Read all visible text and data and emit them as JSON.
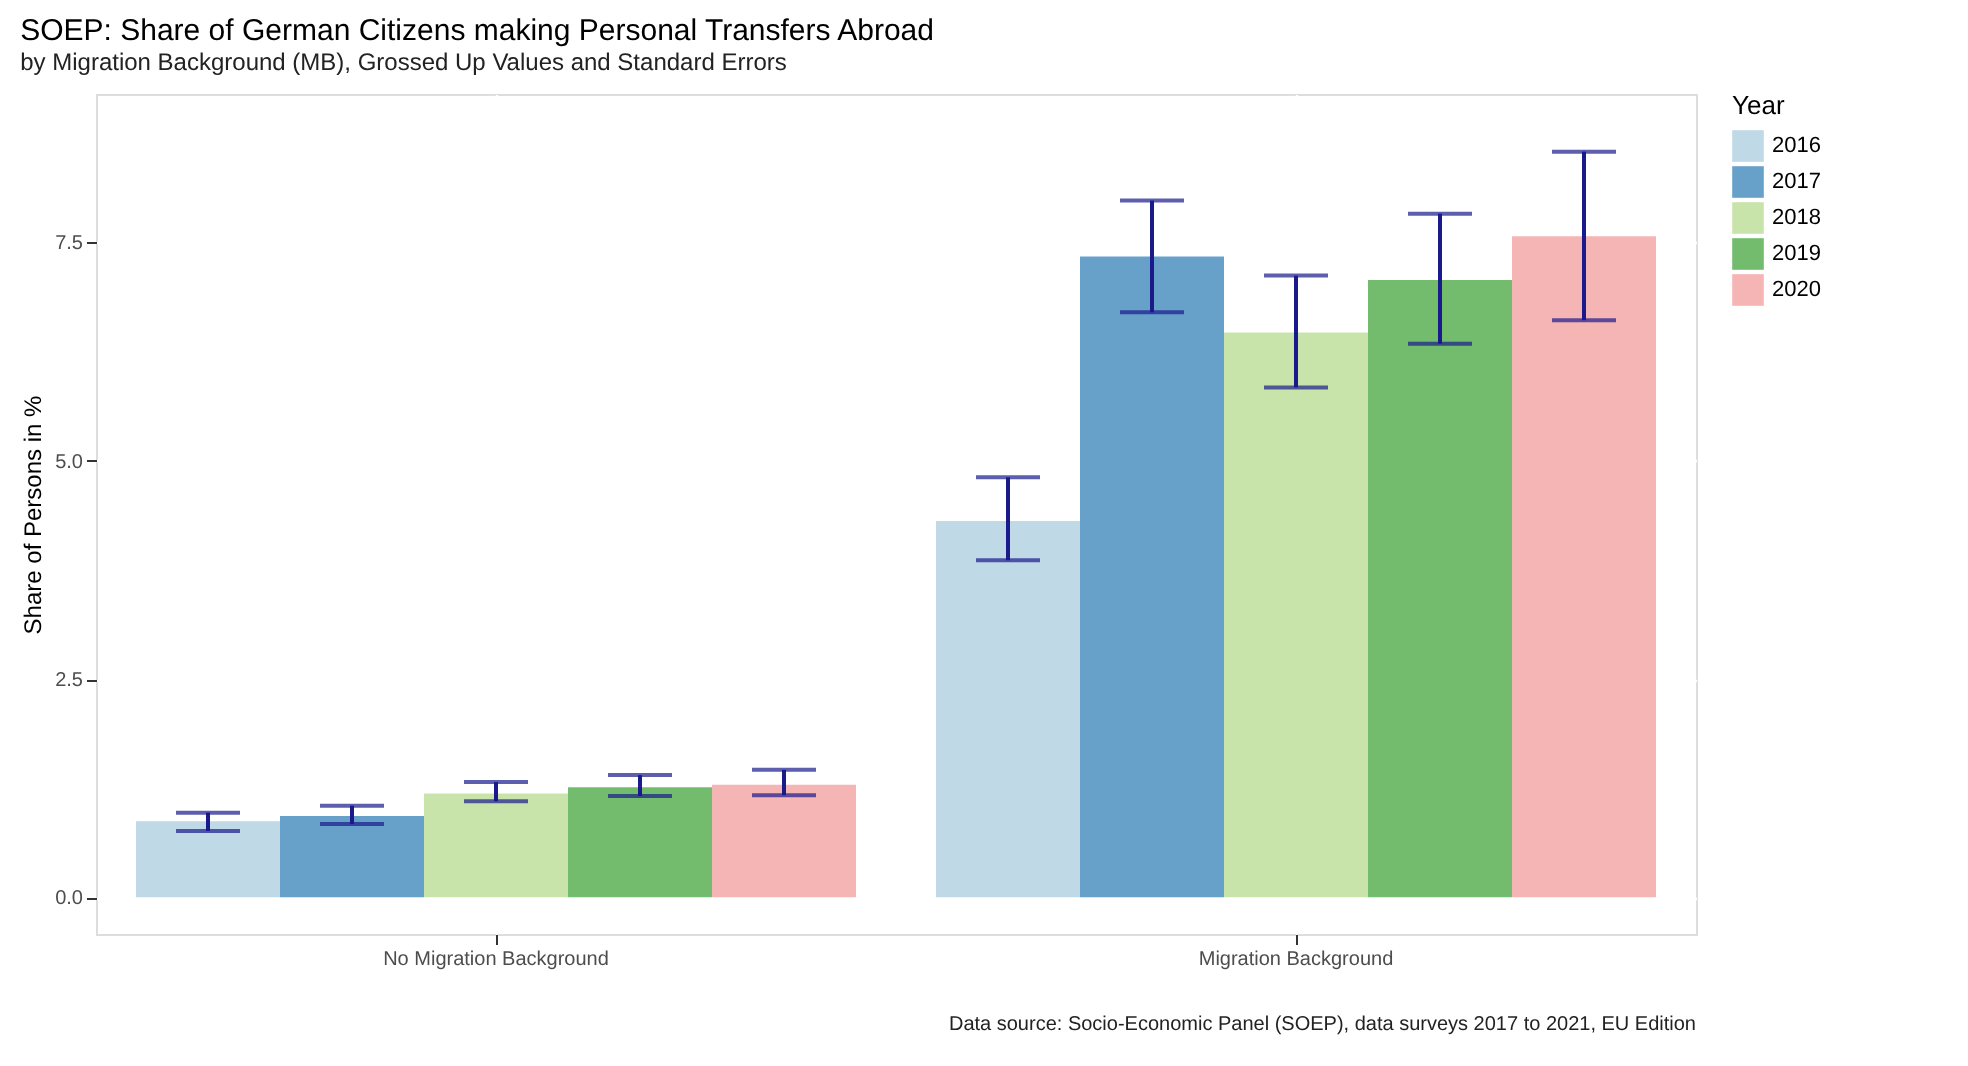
{
  "chart_data": {
    "type": "bar",
    "title": "SOEP: Share of German Citizens making Personal Transfers Abroad",
    "subtitle": "by Migration Background (MB), Grossed Up Values and Standard Errors",
    "ylabel": "Share of Persons in %",
    "legend_title": "Year",
    "categories": [
      "No Migration Background",
      "Migration Background"
    ],
    "series": [
      {
        "name": "2016",
        "color": "#bcd7e6",
        "values": [
          0.87,
          4.31
        ],
        "errors": [
          [
            0.76,
            0.97
          ],
          [
            3.86,
            4.81
          ]
        ]
      },
      {
        "name": "2017",
        "color": "#5f9cc7",
        "values": [
          0.93,
          7.34
        ],
        "errors": [
          [
            0.84,
            1.05
          ],
          [
            6.7,
            7.98
          ]
        ]
      },
      {
        "name": "2018",
        "color": "#c6e3a6",
        "values": [
          1.19,
          6.47
        ],
        "errors": [
          [
            1.1,
            1.32
          ],
          [
            5.84,
            7.12
          ]
        ]
      },
      {
        "name": "2019",
        "color": "#6cb865",
        "values": [
          1.26,
          7.07
        ],
        "errors": [
          [
            1.16,
            1.4
          ],
          [
            6.34,
            7.83
          ]
        ]
      },
      {
        "name": "2020",
        "color": "#f5b1b1",
        "values": [
          1.29,
          7.57
        ],
        "errors": [
          [
            1.17,
            1.46
          ],
          [
            6.61,
            8.54
          ]
        ]
      }
    ],
    "ylim": [
      -0.42,
      9.2
    ],
    "yticks": [
      {
        "value": 0,
        "label": "0.0"
      },
      {
        "value": 2.5,
        "label": "2.5"
      },
      {
        "value": 5,
        "label": "5.0"
      },
      {
        "value": 7.5,
        "label": "7.5"
      }
    ],
    "grid": true,
    "legend": "right",
    "annotations": [
      "Data source: Socio-Economic Panel (SOEP), data surveys 2017 to 2021, EU Edition"
    ]
  }
}
